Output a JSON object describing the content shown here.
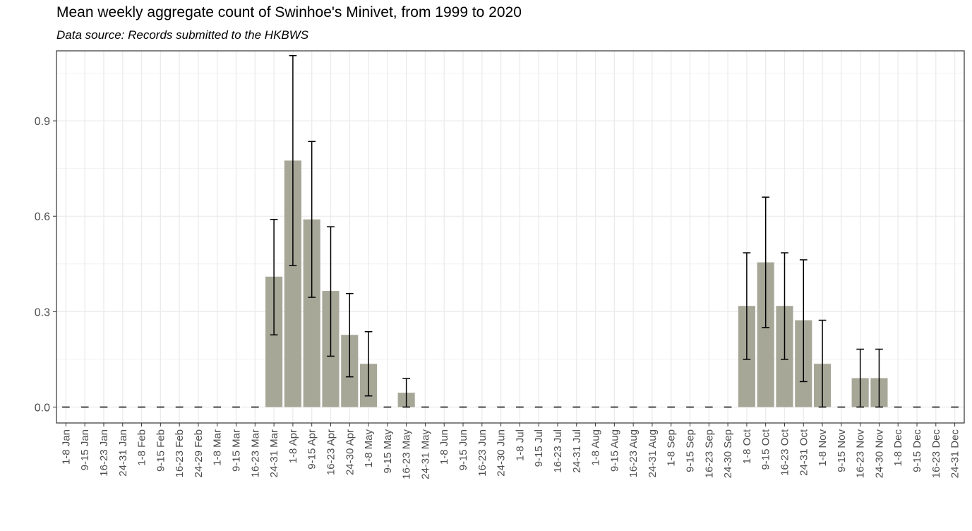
{
  "chart_data": {
    "type": "bar",
    "title": "Mean weekly aggregate count of Swinhoe's Minivet, from 1999 to 2020",
    "subtitle": "Data source: Records submitted to the HKBWS",
    "xlabel": "",
    "ylabel": "",
    "ylim": [
      -0.05,
      1.12
    ],
    "yticks": [
      0.0,
      0.3,
      0.6,
      0.9
    ],
    "ytick_labels": [
      "0.0",
      "0.3",
      "0.6",
      "0.9"
    ],
    "grid": true,
    "bar_color": "#a6a797",
    "categories": [
      "1-8 Jan",
      "9-15 Jan",
      "16-23 Jan",
      "24-31 Jan",
      "1-8 Feb",
      "9-15 Feb",
      "16-23 Feb",
      "24-29 Feb",
      "1-8 Mar",
      "9-15 Mar",
      "16-23 Mar",
      "24-31 Mar",
      "1-8 Apr",
      "9-15 Apr",
      "16-23 Apr",
      "24-30 Apr",
      "1-8 May",
      "9-15 May",
      "16-23 May",
      "24-31 May",
      "1-8 Jun",
      "9-15 Jun",
      "16-23 Jun",
      "24-30 Jun",
      "1-8 Jul",
      "9-15 Jul",
      "16-23 Jul",
      "24-31 Jul",
      "1-8 Aug",
      "9-15 Aug",
      "16-23 Aug",
      "24-31 Aug",
      "1-8 Sep",
      "9-15 Sep",
      "16-23 Sep",
      "24-30 Sep",
      "1-8 Oct",
      "9-15 Oct",
      "16-23 Oct",
      "24-31 Oct",
      "1-8 Nov",
      "9-15 Nov",
      "16-23 Nov",
      "24-30 Nov",
      "1-8 Dec",
      "9-15 Dec",
      "16-23 Dec",
      "24-31 Dec"
    ],
    "values": [
      0,
      0,
      0,
      0,
      0,
      0,
      0,
      0,
      0,
      0,
      0,
      0.41,
      0.775,
      0.59,
      0.365,
      0.227,
      0.136,
      0,
      0.045,
      0,
      0,
      0,
      0,
      0,
      0,
      0,
      0,
      0,
      0,
      0,
      0,
      0,
      0,
      0,
      0,
      0,
      0.318,
      0.455,
      0.318,
      0.273,
      0.136,
      0,
      0.091,
      0.091,
      0,
      0,
      0,
      0
    ],
    "error_lower": [
      0,
      0,
      0,
      0,
      0,
      0,
      0,
      0,
      0,
      0,
      0,
      0.227,
      0.445,
      0.345,
      0.16,
      0.095,
      0.035,
      0,
      0,
      0,
      0,
      0,
      0,
      0,
      0,
      0,
      0,
      0,
      0,
      0,
      0,
      0,
      0,
      0,
      0,
      0,
      0.15,
      0.25,
      0.15,
      0.08,
      0,
      0,
      0,
      0,
      0,
      0,
      0,
      0
    ],
    "error_upper": [
      0,
      0,
      0,
      0,
      0,
      0,
      0,
      0,
      0,
      0,
      0,
      0.59,
      1.105,
      0.835,
      0.567,
      0.357,
      0.237,
      0,
      0.09,
      0,
      0,
      0,
      0,
      0,
      0,
      0,
      0,
      0,
      0,
      0,
      0,
      0,
      0,
      0,
      0,
      0,
      0.485,
      0.66,
      0.485,
      0.463,
      0.273,
      0,
      0.182,
      0.182,
      0,
      0,
      0,
      0
    ]
  }
}
